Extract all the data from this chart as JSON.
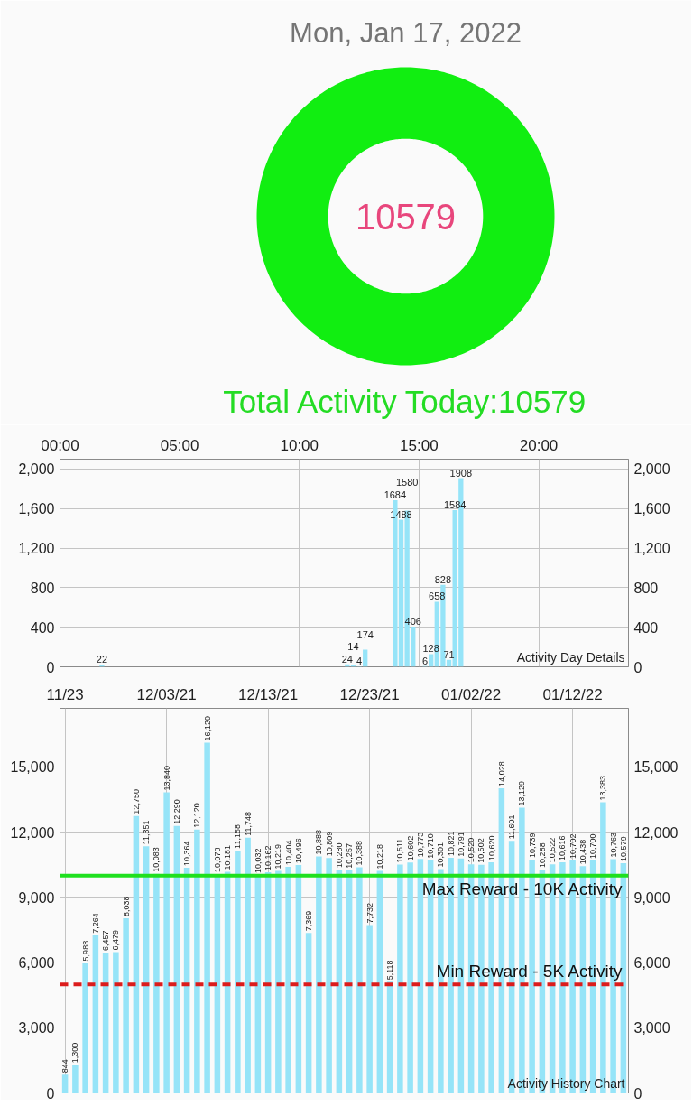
{
  "chart_data": [
    {
      "type": "donut",
      "title": "Mon, Jan 17, 2022",
      "categories": [
        null
      ],
      "values": [
        10579
      ],
      "colors": [
        "#11ee11"
      ],
      "data_labels": true,
      "annotations": [
        "Total Activity Today:10579"
      ]
    },
    {
      "type": "bar",
      "x": [
        1.75,
        12.0,
        12.25,
        12.5,
        12.75,
        14.0,
        14.25,
        14.5,
        14.75,
        15.25,
        15.5,
        15.75,
        16.0,
        16.25,
        16.5,
        16.75
      ],
      "values": [
        22,
        24,
        14,
        4,
        174,
        1684,
        1488,
        1580,
        406,
        6,
        128,
        658,
        828,
        71,
        1584,
        1908
      ],
      "color": "#96e4f8",
      "xlim": [
        0,
        23.75
      ],
      "xticks": [
        {
          "value": 0,
          "label": "00:00"
        },
        {
          "value": 5,
          "label": "05:00"
        },
        {
          "value": 10,
          "label": "10:00"
        },
        {
          "value": 15,
          "label": "15:00"
        },
        {
          "value": 20,
          "label": "20:00"
        }
      ],
      "ylim": [
        0,
        2100
      ],
      "yticks": [
        0,
        400,
        800,
        {
          "value": 1200,
          "label": "1,200"
        },
        {
          "value": 1600,
          "label": "1,600"
        },
        {
          "value": 2000,
          "label": "2,000"
        }
      ],
      "y2lim": [
        0,
        2100
      ],
      "y2ticks": [
        0,
        400,
        800,
        {
          "value": 1200,
          "label": "1,200"
        },
        {
          "value": 1600,
          "label": "1,600"
        },
        {
          "value": 2000,
          "label": "2,000"
        }
      ],
      "grid": true,
      "data_labels": true,
      "annotations": [
        "Activity Day Details"
      ]
    },
    {
      "type": "bar",
      "x": [
        "2021-11-23",
        "2021-11-24",
        "2021-11-25",
        "2021-11-26",
        "2021-11-27",
        "2021-11-28",
        "2021-11-29",
        "2021-11-30",
        "2021-12-01",
        "2021-12-02",
        "2021-12-03",
        "2021-12-04",
        "2021-12-05",
        "2021-12-06",
        "2021-12-07",
        "2021-12-08",
        "2021-12-09",
        "2021-12-10",
        "2021-12-11",
        "2021-12-12",
        "2021-12-13",
        "2021-12-14",
        "2021-12-15",
        "2021-12-16",
        "2021-12-17",
        "2021-12-18",
        "2021-12-19",
        "2021-12-20",
        "2021-12-21",
        "2021-12-22",
        "2021-12-23",
        "2021-12-24",
        "2021-12-25",
        "2021-12-26",
        "2021-12-27",
        "2021-12-28",
        "2021-12-29",
        "2021-12-30",
        "2021-12-31",
        "2022-01-01",
        "2022-01-02",
        "2022-01-03",
        "2022-01-04",
        "2022-01-05",
        "2022-01-06",
        "2022-01-07",
        "2022-01-08",
        "2022-01-09",
        "2022-01-10",
        "2022-01-11",
        "2022-01-12",
        "2022-01-13",
        "2022-01-14",
        "2022-01-15",
        "2022-01-16",
        "2022-01-17"
      ],
      "values": [
        844,
        1300,
        5988,
        7264,
        6457,
        6479,
        8038,
        12750,
        11351,
        10083,
        13840,
        12290,
        10364,
        12120,
        16120,
        10078,
        10181,
        11158,
        11748,
        10032,
        10162,
        10219,
        10404,
        10496,
        7369,
        10888,
        10809,
        10280,
        10257,
        10388,
        7732,
        10218,
        5118,
        10511,
        10602,
        10773,
        10710,
        10301,
        10821,
        10791,
        10520,
        10502,
        10620,
        14028,
        11601,
        13129,
        10739,
        10288,
        10522,
        10616,
        10702,
        10438,
        10700,
        13383,
        10763,
        10579
      ],
      "value_labels": [
        "844",
        "1,300",
        "5,988",
        "7,264",
        "6,457",
        "6,479",
        "8,038",
        "12,750",
        "11,351",
        "10,083",
        "13,840",
        "12,290",
        "10,364",
        "12,120",
        "16,120",
        "10,078",
        "10,181",
        "11,158",
        "11,748",
        "10,032",
        "10,162",
        "10,219",
        "10,404",
        "10,496",
        "7,369",
        "10,888",
        "10,809",
        "10,280",
        "10,257",
        "10,388",
        "7,732",
        "10,218",
        "5,118",
        "10,511",
        "10,602",
        "10,773",
        "10,710",
        "10,301",
        "10,821",
        "10,791",
        "10,520",
        "10,502",
        "10,620",
        "14,028",
        "11,601",
        "13,129",
        "10,739",
        "10,288",
        "10,522",
        "10,616",
        "10,702",
        "10,438",
        "10,700",
        "13,383",
        "10,763",
        "10,579"
      ],
      "color": "#96e4f8",
      "xlim": [
        "2021-11-22T12:00",
        "2022-01-17T12:00"
      ],
      "xticks": [
        {
          "value": "2021-11-23",
          "label": "11/23"
        },
        {
          "value": "2021-12-03",
          "label": "12/03/21"
        },
        {
          "value": "2021-12-13",
          "label": "12/13/21"
        },
        {
          "value": "2021-12-23",
          "label": "12/23/21"
        },
        {
          "value": "2022-01-02",
          "label": "01/02/22"
        },
        {
          "value": "2022-01-12",
          "label": "01/12/22"
        }
      ],
      "ylim": [
        0,
        17700
      ],
      "yticks": [
        0,
        {
          "value": 3000,
          "label": "3,000"
        },
        {
          "value": 6000,
          "label": "6,000"
        },
        {
          "value": 9000,
          "label": "9,000"
        },
        {
          "value": 12000,
          "label": "12,000"
        },
        {
          "value": 15000,
          "label": "15,000"
        }
      ],
      "y2lim": [
        0,
        17700
      ],
      "y2ticks": [
        0,
        {
          "value": 3000,
          "label": "3,000"
        },
        {
          "value": 6000,
          "label": "6,000"
        },
        {
          "value": 9000,
          "label": "9,000"
        },
        {
          "value": 12000,
          "label": "12,000"
        },
        {
          "value": 15000,
          "label": "15,000"
        }
      ],
      "ref_lines": [
        {
          "axis": "y",
          "value": 10000,
          "label": "Max Reward - 10K Activity",
          "color": "#1fe01f",
          "line_style": "solid"
        },
        {
          "axis": "y",
          "value": 5000,
          "label": "Min Reward - 5K Activity",
          "color": "#dc1c1c",
          "line_style": "dashed"
        }
      ],
      "grid": true,
      "annotations": [
        "Activity History Chart"
      ]
    }
  ]
}
